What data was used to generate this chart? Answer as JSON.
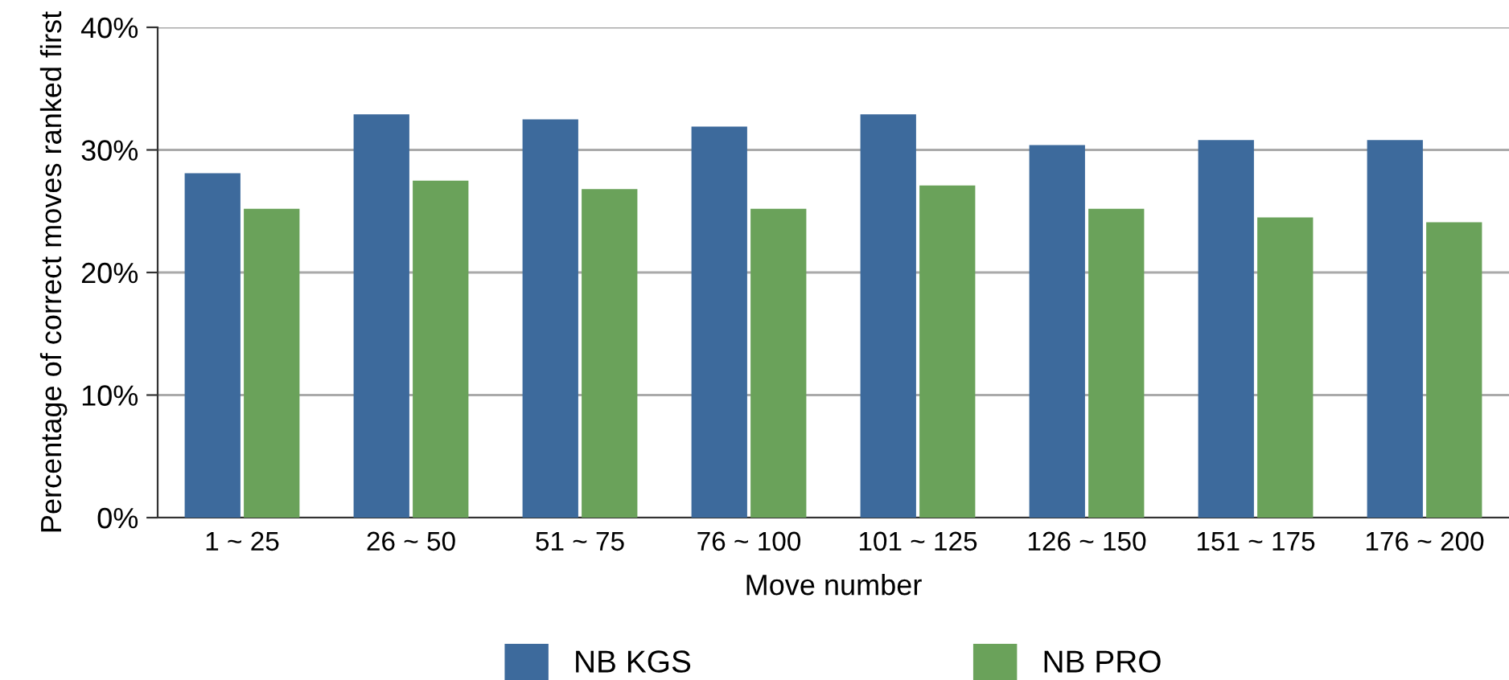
{
  "chart_data": {
    "type": "bar",
    "xlabel": "Move number",
    "ylabel": "Percentage of correct moves ranked first",
    "categories": [
      "1 ~ 25",
      "26 ~ 50",
      "51 ~ 75",
      "76 ~ 100",
      "101 ~ 125",
      "126 ~ 150",
      "151 ~ 175",
      "176 ~ 200"
    ],
    "series": [
      {
        "name": "NB KGS",
        "color": "#3d6a9c",
        "values": [
          28.1,
          32.9,
          32.5,
          31.9,
          32.9,
          30.4,
          30.8,
          30.8
        ]
      },
      {
        "name": "NB PRO",
        "color": "#6aa25a",
        "values": [
          25.2,
          27.5,
          26.8,
          25.2,
          27.1,
          25.2,
          24.5,
          24.1
        ]
      }
    ],
    "ylim": [
      0,
      40
    ],
    "yticks": [
      {
        "value": 0,
        "label": "0%"
      },
      {
        "value": 10,
        "label": "10%"
      },
      {
        "value": 20,
        "label": "20%"
      },
      {
        "value": 30,
        "label": "30%"
      },
      {
        "value": 40,
        "label": "40%"
      }
    ],
    "grid": "y",
    "legend": "bottom"
  }
}
